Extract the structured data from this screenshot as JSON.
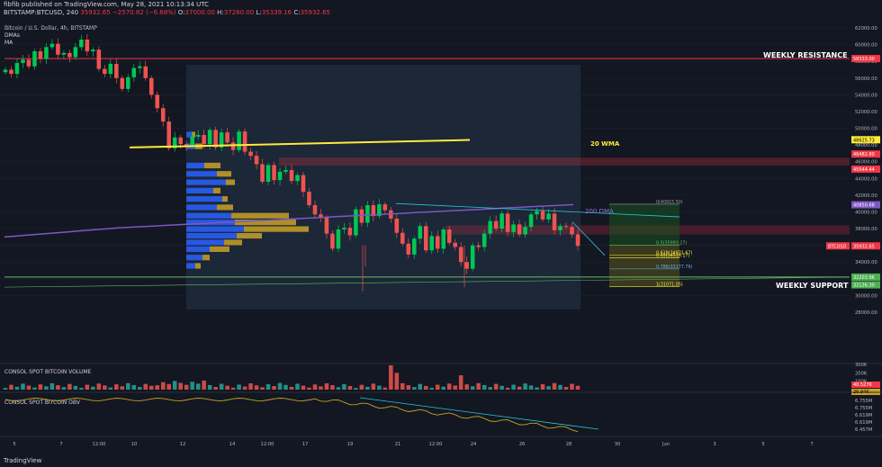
{
  "header": {
    "publisher_line": "fibfib published on TradingView.com, May 28, 2021 10:13:34 UTC",
    "symbol": "BITSTAMP:BTCUSD, 240",
    "last": "35932.65",
    "change": "−2570.82 (−6.68%)",
    "o": "O:",
    "o_val": "37000.00",
    "h": "H:",
    "h_val": "37280.00",
    "l": "L:",
    "l_val": "35339.16",
    "c": "C:",
    "c_val": "35932.65"
  },
  "legend": {
    "title": "Bitcoin / U.S. Dollar, 4h, BITSTAMP",
    "dmas": "DMAs",
    "ma": "MA"
  },
  "annotations": {
    "weekly_resistance": "WEEKLY RESISTANCE",
    "weekly_support": "WEEKLY SUPPORT",
    "wma20": "20 WMA",
    "dma200": "200 DMA",
    "fib0": "0(40915.50)",
    "fib05": "0.5(35993.27)",
    "fib618": "0.618(34831.67)",
    "fib65": "0.65(34519.17)",
    "fib786": "0.786(33177.76)",
    "fib1": "1(31071.05)"
  },
  "price_axis": {
    "ticks": [
      "62000.00",
      "60000.00",
      "58000.00",
      "56000.00",
      "54000.00",
      "52000.00",
      "50000.00",
      "48000.00",
      "46000.00",
      "44000.00",
      "42000.00",
      "40000.00",
      "38000.00",
      "36000.00",
      "34000.00",
      "32000.00",
      "30000.00",
      "28000.00"
    ],
    "badges": {
      "resistance": "58333.00",
      "wma": "48625.73",
      "r1": "46482.80",
      "r2": "45544.44",
      "dma": "40850.68",
      "btcusd_label": "BTCUSD",
      "last": "35932.65",
      "support1": "32203.96",
      "support2": "32136.30"
    }
  },
  "volume_pane": {
    "title": "CONSOL SPOT BITCOIN VOLUME",
    "ticks": [
      "300K",
      "200K",
      "100K"
    ],
    "badge1": "40.527K",
    "badge2": "26.94K"
  },
  "obv_pane": {
    "title": "CONSOL SPOT BITCOIN OBV",
    "ticks": [
      "6.755M",
      "6.755M",
      "6.619M",
      "6.619M",
      "6.457M"
    ]
  },
  "time_axis": {
    "labels": [
      "5",
      "7",
      "12:00",
      "10",
      "12",
      "14",
      "12:00",
      "17",
      "19",
      "21",
      "12:00",
      "24",
      "26",
      "28",
      "30",
      "Jun",
      "3",
      "5",
      "7"
    ]
  },
  "footer": {
    "logo": "TradingView"
  },
  "colors": {
    "background": "#131722",
    "up": "#26a69a",
    "up_candle": "#00c853",
    "down": "#ef5350",
    "resistance_line": "#f23645",
    "wma_line": "#ffeb3b",
    "dma_line": "#7e57c2",
    "support_line": "#66bb6a",
    "vp_blue": "#2962ff",
    "vp_yellow": "#c9a227"
  },
  "chart_data": {
    "type": "candlestick",
    "title": "Bitcoin / U.S. Dollar, 4h, BITSTAMP",
    "ylim": [
      27000,
      63000
    ],
    "levels": {
      "weekly_resistance": 58333,
      "weekly_support": 32204,
      "resistance_zone_top": 46483,
      "resistance_zone_bottom": 45544,
      "last_price": 35932.65
    },
    "close_path": [
      57000,
      56500,
      57800,
      58200,
      57400,
      59200,
      58300,
      59700,
      60100,
      58800,
      59000,
      58500,
      59700,
      60600,
      59200,
      59400,
      57100,
      56500,
      57700,
      56000,
      54700,
      56100,
      57200,
      57400,
      56000,
      54000,
      52400,
      50800,
      47600,
      48900,
      48100,
      47900,
      49000,
      49200,
      48100,
      49800,
      47700,
      49500,
      48300,
      47400,
      49600,
      47200,
      46700,
      45700,
      43600,
      45600,
      43800,
      44800,
      45000,
      43700,
      44400,
      42400,
      40800,
      39700,
      39300,
      37400,
      35600,
      37900,
      38100,
      37200,
      40300,
      38700,
      40800,
      39500,
      40900,
      40200,
      39200,
      37500,
      36200,
      34900,
      36800,
      38300,
      35400,
      37100,
      35600,
      37900,
      36300,
      35800,
      34000,
      33200,
      36000,
      35800,
      37400,
      38900,
      38000,
      39800,
      37600,
      38500,
      37300,
      38200,
      39700,
      40100,
      39100,
      39800,
      37800,
      38300,
      38200,
      37300,
      35933
    ]
  }
}
